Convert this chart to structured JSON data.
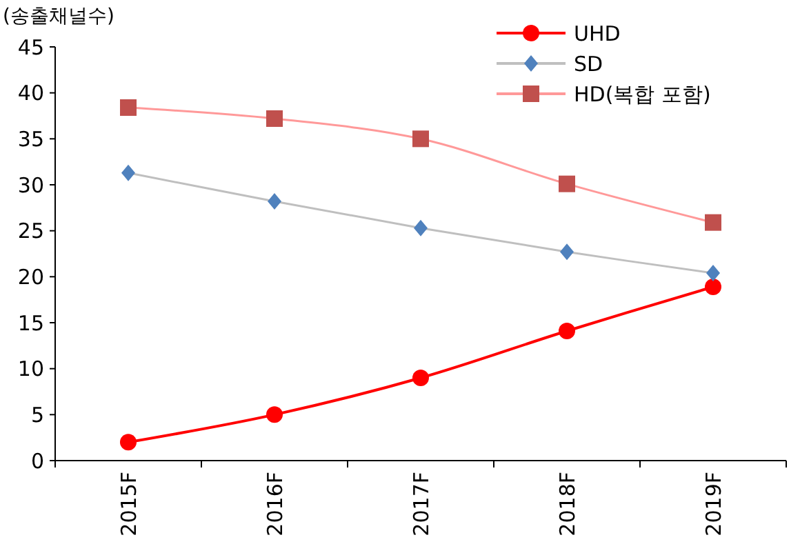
{
  "chart_data": {
    "type": "line",
    "ylabel": "(송출채널수)",
    "categories": [
      "2015F",
      "2016F",
      "2017F",
      "2018F",
      "2019F"
    ],
    "series": [
      {
        "name": "UHD",
        "color": "#ff0000",
        "marker": "circle",
        "values": [
          2,
          5,
          9,
          14.1,
          18.9
        ]
      },
      {
        "name": "SD",
        "color": "#bfbfbf",
        "marker": "diamond",
        "values": [
          31.3,
          28.2,
          25.3,
          22.7,
          20.4
        ]
      },
      {
        "name": "HD(복합 포함)",
        "color": "#ff9999",
        "marker": "square",
        "values": [
          38.4,
          37.2,
          35,
          30.1,
          25.9
        ]
      }
    ],
    "ylim": [
      0,
      45
    ],
    "yticks": [
      0,
      5,
      10,
      15,
      20,
      25,
      30,
      35,
      40,
      45
    ],
    "grid": false,
    "legend": "top right"
  }
}
